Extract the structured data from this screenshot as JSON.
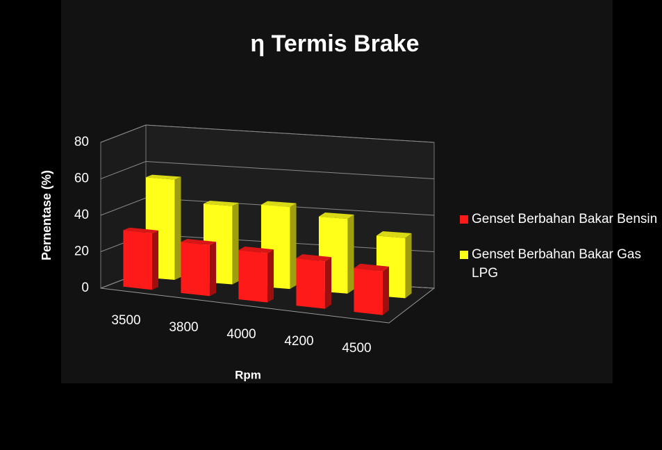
{
  "chart_data": {
    "type": "bar3d",
    "title": "η Termis Brake",
    "x_label": "Rpm",
    "y_label": "Pernentase (%)",
    "categories": [
      "3500",
      "3800",
      "4000",
      "4200",
      "4500"
    ],
    "series": [
      {
        "name": "Genset Berbahan Bakar Bensin",
        "color": "#ff1a1a",
        "values": [
          31,
          28,
          27,
          26,
          24
        ]
      },
      {
        "name": "Genset Berbahan Bakar Gas LPG",
        "color": "#ffff1a",
        "values": [
          55,
          43,
          45,
          41,
          33
        ]
      }
    ],
    "ylim": [
      0,
      80
    ],
    "yticks": [
      0,
      20,
      40,
      60,
      80
    ],
    "grid": true,
    "legend": "right"
  }
}
